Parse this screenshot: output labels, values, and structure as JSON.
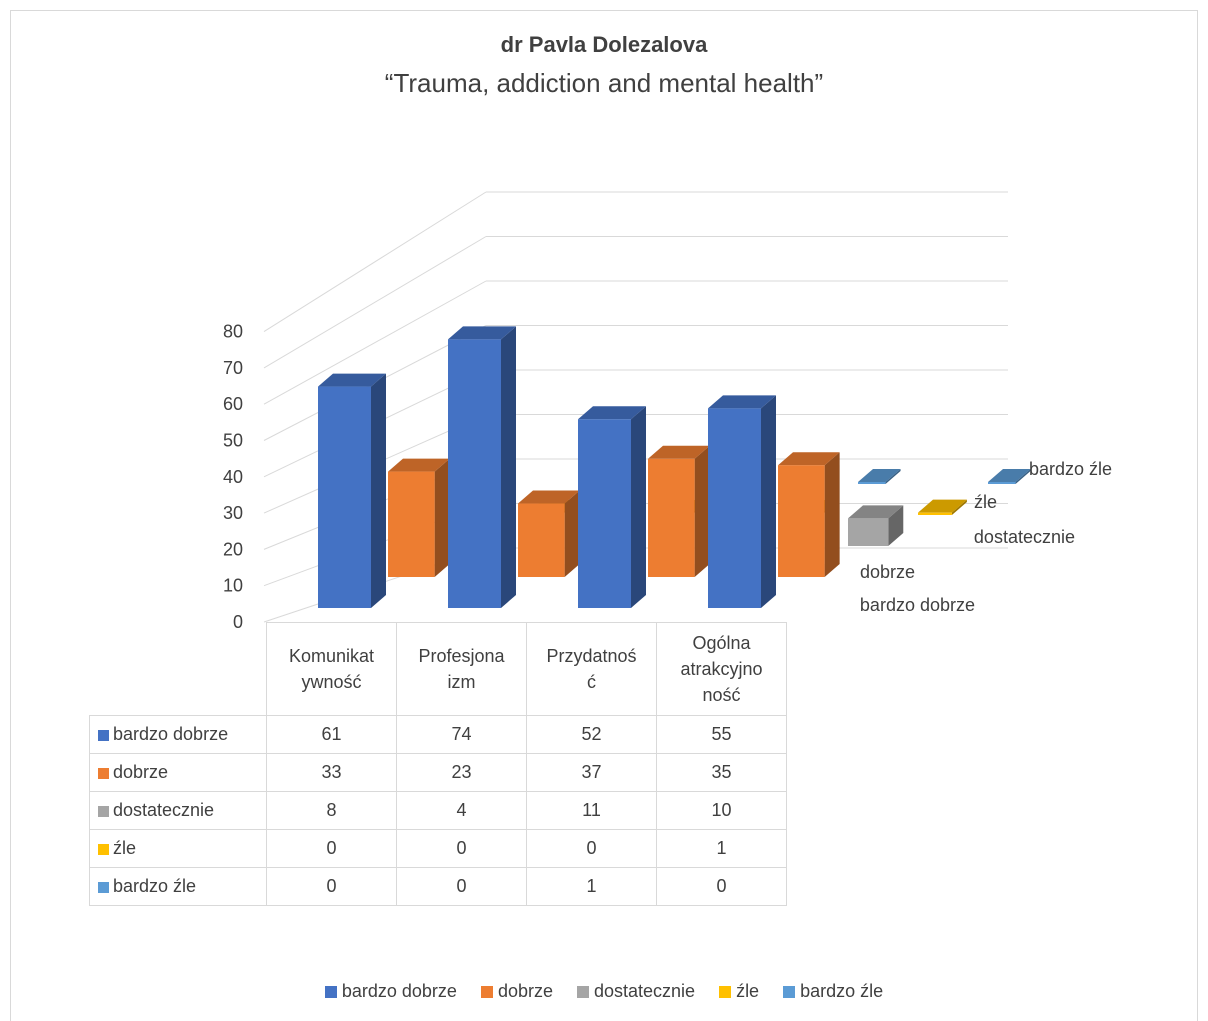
{
  "chart_data": {
    "type": "bar",
    "title": "dr Pavla Dolezalova",
    "subtitle": "“Trauma, addiction and mental health”",
    "categories": [
      "Komunikatywność",
      "Profesjonalizm",
      "Przydatność",
      "Ogólna atrakcyjność"
    ],
    "category_labels": [
      [
        "Komunikat",
        "ywność"
      ],
      [
        "Profesjona",
        "izm"
      ],
      [
        "Przydatnoś",
        "ć"
      ],
      [
        "Ogólna",
        "atrakcyjno",
        "ność"
      ]
    ],
    "series": [
      {
        "name": "bardzo dobrze",
        "color": "#4472c4",
        "values": [
          61,
          74,
          52,
          55
        ]
      },
      {
        "name": "dobrze",
        "color": "#ed7d31",
        "values": [
          33,
          23,
          37,
          35
        ]
      },
      {
        "name": "dostatecznie",
        "color": "#a5a5a5",
        "values": [
          8,
          4,
          11,
          10
        ]
      },
      {
        "name": "źle",
        "color": "#ffc000",
        "values": [
          0,
          0,
          0,
          1
        ]
      },
      {
        "name": "bardzo źle",
        "color": "#5b9bd5",
        "values": [
          0,
          0,
          1,
          0
        ]
      }
    ],
    "y_ticks": [
      "0",
      "10",
      "20",
      "30",
      "40",
      "50",
      "60",
      "70",
      "80"
    ],
    "ylim": [
      0,
      80
    ],
    "grid": true,
    "style": "3d-column",
    "legend": "bottom",
    "data_table": true
  }
}
